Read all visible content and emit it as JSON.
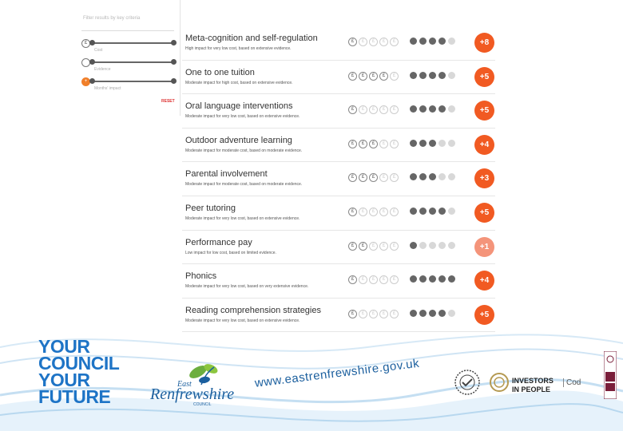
{
  "filter": {
    "header": "Filter results by key criteria",
    "rows": [
      {
        "icon": "£",
        "label": "Cost"
      },
      {
        "icon": "",
        "label": "Evidence"
      },
      {
        "icon": "+",
        "label": "Months' impact"
      }
    ],
    "reset": "RESET"
  },
  "strategies": [
    {
      "title": "Meta-cognition and self-regulation",
      "desc": "High impact for very low cost, based on extensive evidence.",
      "cost": 1,
      "evidence": 4,
      "impact": "+8"
    },
    {
      "title": "One to one tuition",
      "desc": "Moderate impact for high cost, based on extensive evidence.",
      "cost": 4,
      "evidence": 4,
      "impact": "+5"
    },
    {
      "title": "Oral language interventions",
      "desc": "Moderate impact for very low cost, based on extensive evidence.",
      "cost": 1,
      "evidence": 4,
      "impact": "+5"
    },
    {
      "title": "Outdoor adventure learning",
      "desc": "Moderate impact for moderate cost, based on moderate evidence.",
      "cost": 3,
      "evidence": 3,
      "impact": "+4"
    },
    {
      "title": "Parental involvement",
      "desc": "Moderate impact for moderate cost, based on moderate evidence.",
      "cost": 3,
      "evidence": 3,
      "impact": "+3"
    },
    {
      "title": "Peer tutoring",
      "desc": "Moderate impact for very low cost, based on extensive evidence.",
      "cost": 1,
      "evidence": 4,
      "impact": "+5"
    },
    {
      "title": "Performance pay",
      "desc": "Low impact for low cost, based on limited evidence.",
      "cost": 2,
      "evidence": 1,
      "impact": "+1",
      "low": true
    },
    {
      "title": "Phonics",
      "desc": "Moderate impact for very low cost, based on very extensive evidence.",
      "cost": 1,
      "evidence": 5,
      "impact": "+4"
    },
    {
      "title": "Reading comprehension strategies",
      "desc": "Moderate impact for very low cost, based on extensive evidence.",
      "cost": 1,
      "evidence": 4,
      "impact": "+5"
    }
  ],
  "footer": {
    "slogan": [
      "YOUR",
      "COUNCIL",
      "YOUR",
      "FUTURE"
    ],
    "logo_small": "East",
    "logo_name": "Renfrewshire",
    "logo_sub": "COUNCIL",
    "url": "www.eastrenfrewshire.gov.uk",
    "iip_line1": "INVESTORS",
    "iip_line2": "IN PEOPLE",
    "code": "Cod"
  },
  "colors": {
    "impact": "#f15a22",
    "impact_low": "#f4947a",
    "slogan": "#1e74c6",
    "url": "#1b5f9e"
  }
}
